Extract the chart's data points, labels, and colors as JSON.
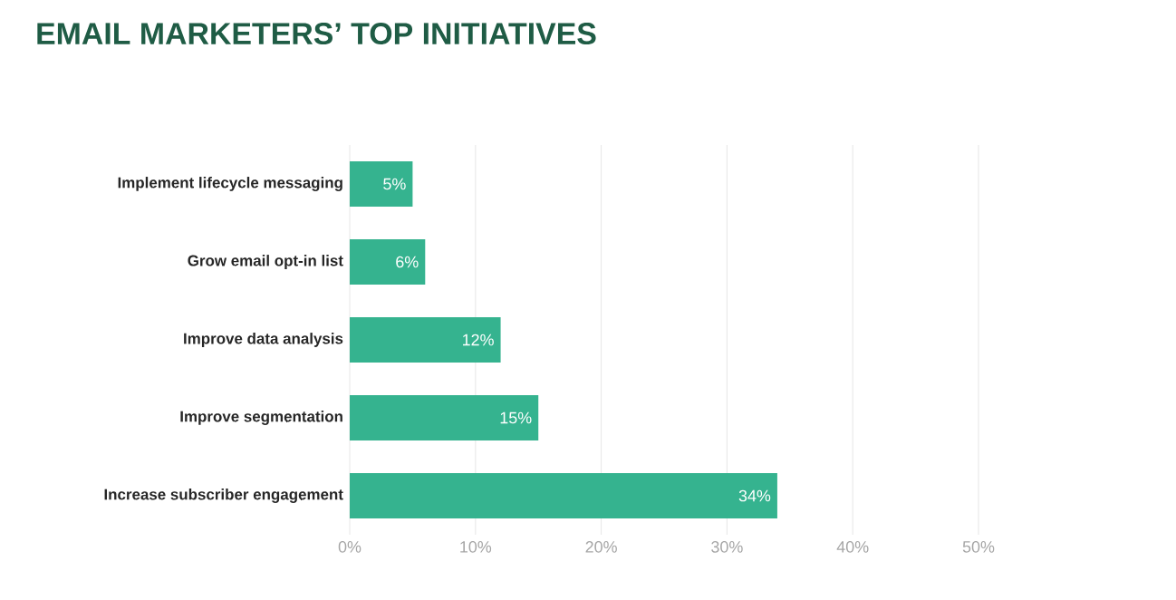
{
  "chart_data": {
    "type": "bar",
    "orientation": "horizontal",
    "title": "EMAIL MARKETERS’ TOP INITIATIVES",
    "categories": [
      "Implement lifecycle messaging",
      "Grow email opt-in list",
      "Improve data analysis",
      "Improve segmentation",
      "Increase subscriber engagement"
    ],
    "values": [
      5,
      6,
      12,
      15,
      34
    ],
    "value_labels": [
      "5%",
      "6%",
      "12%",
      "15%",
      "34%"
    ],
    "color": "#35b38f",
    "xlim": [
      0,
      50
    ],
    "xticks": [
      {
        "value": 0,
        "label": "0%"
      },
      {
        "value": 10,
        "label": "10%"
      },
      {
        "value": 20,
        "label": "20%"
      },
      {
        "value": 30,
        "label": "30%"
      },
      {
        "value": 40,
        "label": "40%"
      },
      {
        "value": 50,
        "label": "50%"
      }
    ],
    "grid": "x"
  }
}
